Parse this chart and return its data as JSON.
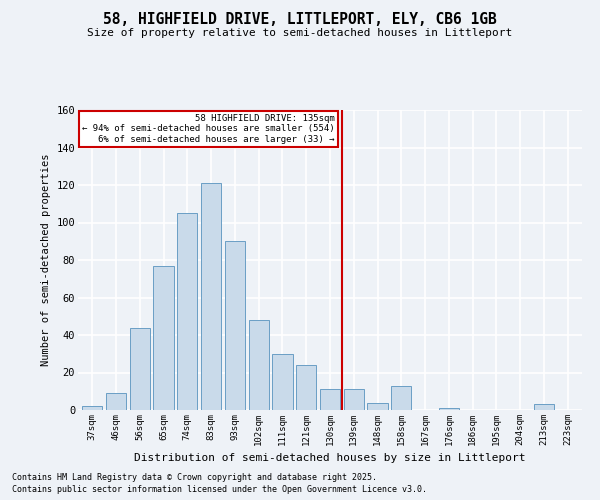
{
  "title1": "58, HIGHFIELD DRIVE, LITTLEPORT, ELY, CB6 1GB",
  "title2": "Size of property relative to semi-detached houses in Littleport",
  "xlabel": "Distribution of semi-detached houses by size in Littleport",
  "ylabel": "Number of semi-detached properties",
  "bar_labels": [
    "37sqm",
    "46sqm",
    "56sqm",
    "65sqm",
    "74sqm",
    "83sqm",
    "93sqm",
    "102sqm",
    "111sqm",
    "121sqm",
    "130sqm",
    "139sqm",
    "148sqm",
    "158sqm",
    "167sqm",
    "176sqm",
    "186sqm",
    "195sqm",
    "204sqm",
    "213sqm",
    "223sqm"
  ],
  "bar_values": [
    2,
    9,
    44,
    77,
    105,
    121,
    90,
    48,
    30,
    24,
    11,
    11,
    4,
    13,
    0,
    1,
    0,
    0,
    0,
    3,
    0
  ],
  "bar_color": "#c9daea",
  "bar_edge_color": "#6a9ec5",
  "vline_color": "#cc0000",
  "annotation_title": "58 HIGHFIELD DRIVE: 135sqm",
  "annotation_line1": "← 94% of semi-detached houses are smaller (554)",
  "annotation_line2": "6% of semi-detached houses are larger (33) →",
  "annotation_box_color": "#cc0000",
  "ylim": [
    0,
    160
  ],
  "yticks": [
    0,
    20,
    40,
    60,
    80,
    100,
    120,
    140,
    160
  ],
  "footnote1": "Contains HM Land Registry data © Crown copyright and database right 2025.",
  "footnote2": "Contains public sector information licensed under the Open Government Licence v3.0.",
  "bg_color": "#eef2f7",
  "grid_color": "#ffffff"
}
